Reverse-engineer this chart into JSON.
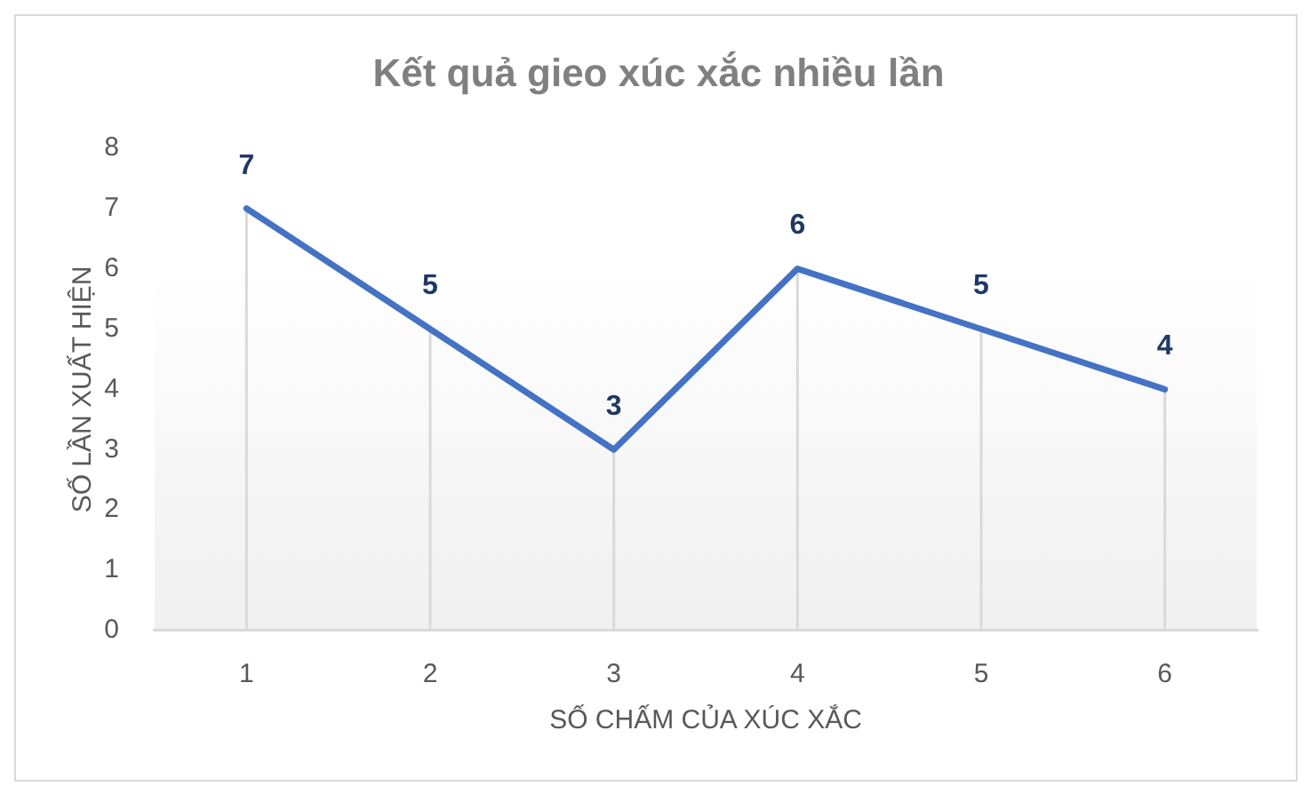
{
  "chart_data": {
    "type": "line",
    "title": "Kết quả gieo xúc xắc nhiều lần",
    "xlabel": "SỐ CHẤM CỦA XÚC XẮC",
    "ylabel": "SỐ LẦN XUẤT HIỆN",
    "categories": [
      "1",
      "2",
      "3",
      "4",
      "5",
      "6"
    ],
    "series": [
      {
        "color": "#4472c4",
        "values": [
          7,
          5,
          3,
          6,
          5,
          4
        ]
      }
    ],
    "ylim": [
      0,
      8
    ],
    "yticks": [
      0,
      1,
      2,
      3,
      4,
      5,
      6,
      7,
      8
    ],
    "marker": "none",
    "line_style": "solid",
    "data_labels": true
  }
}
